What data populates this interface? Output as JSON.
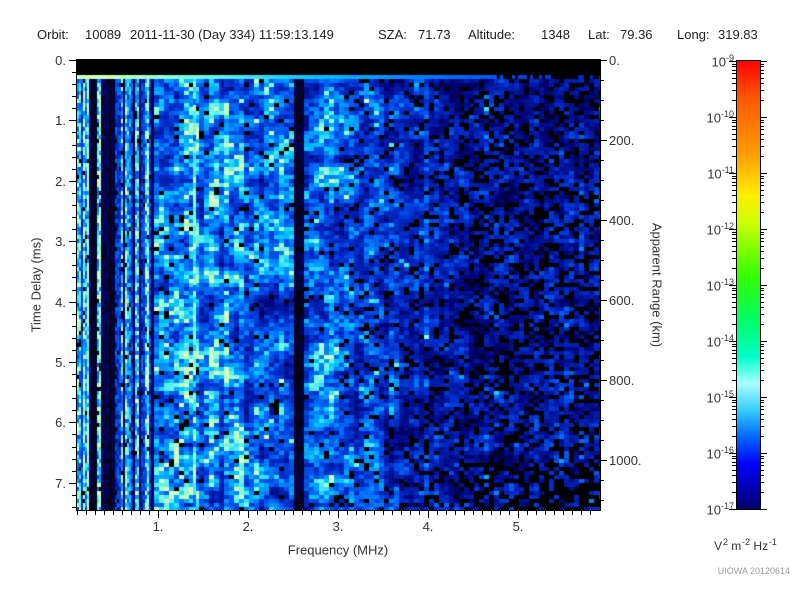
{
  "header": {
    "orbit_label": "Orbit:",
    "orbit_value": "10089",
    "datetime": "2011-11-30 (Day 334) 11:59:13.149",
    "sza_label": "SZA:",
    "sza_value": "71.73",
    "altitude_label": "Altitude:",
    "altitude_value": "1348",
    "lat_label": "Lat:",
    "lat_value": "79.36",
    "long_label": "Long:",
    "long_value": "319.83"
  },
  "chart_data": {
    "type": "heatmap",
    "title": "",
    "x_axis": {
      "label": "Frequency (MHz)",
      "min": 0.1,
      "max": 5.91,
      "major_values": [
        1,
        2,
        3,
        4,
        5
      ],
      "major_labels": [
        "1.",
        "2.",
        "3.",
        "4.",
        "5."
      ],
      "minor_step": 0.1
    },
    "y_axis": {
      "label": "Time Delay (ms)",
      "min": 0,
      "max": 7.45,
      "major_values": [
        0,
        1,
        2,
        3,
        4,
        5,
        6,
        7
      ],
      "major_labels": [
        "0.",
        "1.",
        "2.",
        "3.",
        "4.",
        "5.",
        "6.",
        "7."
      ],
      "minor_step": 0.2
    },
    "y2_axis": {
      "label": "Apparent Range (km)",
      "min": 0,
      "max": 1125,
      "major_values": [
        0,
        200,
        400,
        600,
        800,
        1000
      ],
      "major_labels": [
        "0.",
        "200.",
        "400.",
        "600.",
        "800.",
        "1000."
      ],
      "minor_step": 50
    },
    "colorbar": {
      "top_exp": -9,
      "bottom_exp": -17,
      "tick_exponents": [
        -9,
        -10,
        -11,
        -12,
        -13,
        -14,
        -15,
        -16,
        -17
      ],
      "units_parts": [
        {
          "base": "V",
          "exp": "2"
        },
        {
          "base": "m",
          "exp": "-2"
        },
        {
          "base": "Hz",
          "exp": "-1"
        }
      ],
      "gradient_stops": [
        {
          "c": "#ff0000",
          "p": 0
        },
        {
          "c": "#ff5500",
          "p": 8
        },
        {
          "c": "#ff9900",
          "p": 20
        },
        {
          "c": "#ffee00",
          "p": 30
        },
        {
          "c": "#ccff00",
          "p": 36
        },
        {
          "c": "#33ff00",
          "p": 48
        },
        {
          "c": "#00ff66",
          "p": 58
        },
        {
          "c": "#00ffcc",
          "p": 66
        },
        {
          "c": "#aaffff",
          "p": 72
        },
        {
          "c": "#33ccff",
          "p": 78
        },
        {
          "c": "#0066ff",
          "p": 84
        },
        {
          "c": "#0000ff",
          "p": 90
        },
        {
          "c": "#000099",
          "p": 97
        },
        {
          "c": "#000066",
          "p": 100
        }
      ]
    },
    "features": {
      "seed": 20120614,
      "blank_top_ms": 0.25,
      "surface_echo_ms": 0.3,
      "striped_region_mhz": [
        0.1,
        0.95
      ],
      "bright_line_mhz": 1.4,
      "dark_bands_mhz": [
        [
          0.22,
          0.3
        ],
        [
          0.38,
          0.52
        ],
        [
          2.48,
          2.58
        ]
      ],
      "fade_start_mhz": 2.6,
      "dark_right_mhz": 4.3,
      "description": "Mottled blue ionospheric sounder radargram: noise field brightest 0.1-2.5 MHz, bright cyan surface-echo line at ~0.3 ms delay fading with frequency, vertical striping below 1 MHz, dark vertical bands, increasingly black above 4 MHz"
    }
  },
  "footer": {
    "credit": "UIOWA 20120614"
  }
}
